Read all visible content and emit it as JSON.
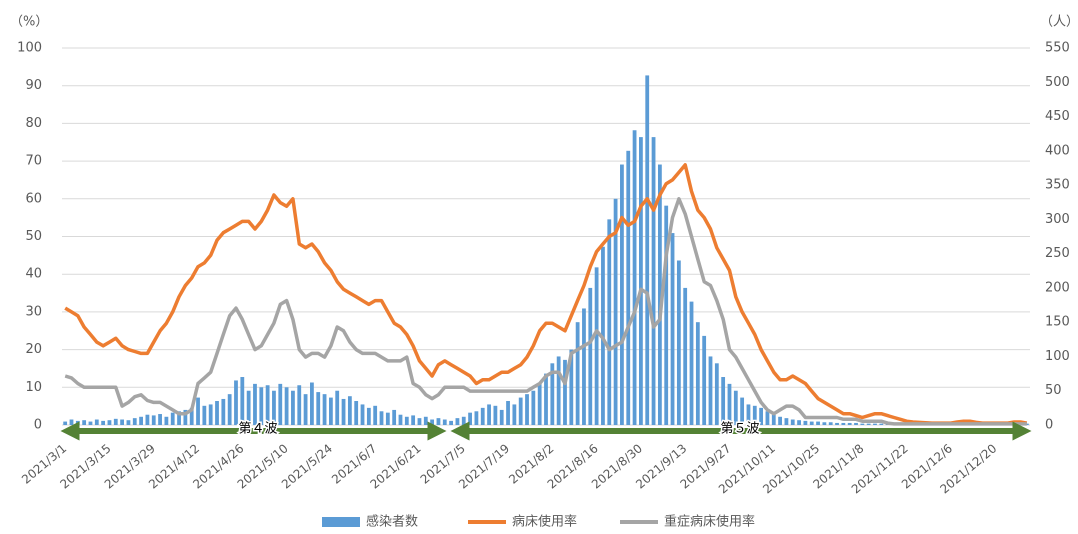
{
  "chart_data": {
    "type": "combo",
    "y_label": "（%）",
    "y2_label": "（人）",
    "annotations": [
      "第４波",
      "第５波"
    ],
    "categories": [
      "2021/3/1",
      null,
      null,
      null,
      null,
      null,
      null,
      "2021/3/15",
      null,
      null,
      null,
      null,
      null,
      null,
      "2021/3/29",
      null,
      null,
      null,
      null,
      null,
      null,
      "2021/4/12",
      null,
      null,
      null,
      null,
      null,
      null,
      "2021/4/26",
      null,
      null,
      null,
      null,
      null,
      null,
      "2021/5/10",
      null,
      null,
      null,
      null,
      null,
      null,
      "2021/5/24",
      null,
      null,
      null,
      null,
      null,
      null,
      "2021/6/7",
      null,
      null,
      null,
      null,
      null,
      null,
      "2021/6/21",
      null,
      null,
      null,
      null,
      null,
      null,
      "2021/7/5",
      null,
      null,
      null,
      null,
      null,
      null,
      "2021/7/19",
      null,
      null,
      null,
      null,
      null,
      null,
      "2021/8/2",
      null,
      null,
      null,
      null,
      null,
      null,
      "2021/8/16",
      null,
      null,
      null,
      null,
      null,
      null,
      "2021/8/30",
      null,
      null,
      null,
      null,
      null,
      null,
      "2021/9/13",
      null,
      null,
      null,
      null,
      null,
      null,
      "2021/9/27",
      null,
      null,
      null,
      null,
      null,
      null,
      "2021/10/11",
      null,
      null,
      null,
      null,
      null,
      null,
      "2021/10/25",
      null,
      null,
      null,
      null,
      null,
      null,
      "2021/11/8",
      null,
      null,
      null,
      null,
      null,
      null,
      "2021/11/22",
      null,
      null,
      null,
      null,
      null,
      null,
      "2021/12/6",
      null,
      null,
      null,
      null,
      null,
      null,
      "2021/12/20",
      null,
      null,
      null,
      null,
      null
    ],
    "series": [
      {
        "name": "感染者数",
        "type": "bar",
        "axis": "y2",
        "color": "#5b9bd5",
        "values": [
          5,
          8,
          6,
          7,
          5,
          8,
          6,
          7,
          9,
          8,
          7,
          10,
          12,
          15,
          14,
          16,
          12,
          18,
          20,
          22,
          25,
          40,
          28,
          30,
          35,
          38,
          45,
          65,
          70,
          50,
          60,
          55,
          58,
          50,
          60,
          55,
          50,
          58,
          45,
          62,
          48,
          45,
          40,
          50,
          38,
          42,
          35,
          30,
          25,
          28,
          20,
          18,
          22,
          15,
          12,
          14,
          10,
          12,
          8,
          10,
          8,
          6,
          10,
          12,
          18,
          20,
          25,
          30,
          28,
          22,
          35,
          30,
          40,
          45,
          50,
          60,
          75,
          90,
          100,
          95,
          110,
          150,
          170,
          200,
          230,
          260,
          300,
          330,
          380,
          400,
          430,
          420,
          510,
          420,
          380,
          320,
          280,
          240,
          200,
          180,
          150,
          130,
          100,
          90,
          70,
          60,
          50,
          40,
          30,
          28,
          25,
          20,
          15,
          12,
          10,
          8,
          7,
          6,
          5,
          5,
          4,
          4,
          3,
          3,
          3,
          3,
          2,
          2,
          2,
          2,
          2,
          2,
          2,
          2,
          2,
          2,
          2,
          2,
          2,
          2,
          2,
          2,
          2,
          2,
          2,
          2,
          2,
          2,
          2,
          2,
          2,
          2,
          2
        ]
      },
      {
        "name": "病床使用率",
        "type": "line",
        "color": "#ed7d31",
        "values": [
          31,
          30,
          29,
          26,
          24,
          22,
          21,
          22,
          23,
          21,
          20,
          19.5,
          19,
          19,
          22,
          25,
          27,
          30,
          34,
          37,
          39,
          42,
          43,
          45,
          49,
          51,
          52,
          53,
          54,
          54,
          52,
          54,
          57,
          61,
          59,
          58,
          60,
          48,
          47,
          48,
          46,
          43,
          41,
          38,
          36,
          35,
          34,
          33,
          32,
          33,
          33,
          30,
          27,
          26,
          24,
          21,
          17,
          15,
          13,
          16,
          17,
          16,
          15,
          14,
          13,
          11,
          12,
          12,
          13,
          14,
          14,
          15,
          16,
          18,
          21,
          25,
          27,
          27,
          26,
          25,
          29,
          33,
          37,
          42,
          46,
          48,
          50,
          51,
          55,
          53,
          54,
          58,
          60,
          57,
          61,
          64,
          65,
          67,
          69,
          62,
          57,
          55,
          52,
          47,
          44,
          41,
          34,
          30,
          27,
          24,
          20,
          17,
          14,
          12,
          12,
          13,
          12,
          11,
          9,
          7,
          6,
          5,
          4,
          3,
          3,
          2.5,
          2,
          2.5,
          3,
          3,
          2.5,
          2,
          1.5,
          1,
          0.8,
          0.7,
          0.6,
          0.5,
          0.5,
          0.5,
          0.5,
          0.8,
          1,
          1,
          0.7,
          0.5,
          0.5,
          0.5,
          0.5,
          0.5,
          0.8,
          0.8,
          0.5
        ]
      },
      {
        "name": "重症病床使用率",
        "type": "line",
        "color": "#a5a5a5",
        "values": [
          13,
          12.5,
          11,
          10,
          10,
          10,
          10,
          10,
          10,
          5,
          6,
          7.5,
          8,
          6.5,
          6,
          6,
          5,
          4,
          3,
          3,
          4,
          11,
          12.5,
          14,
          19,
          24,
          29,
          31,
          28,
          24,
          20,
          21,
          24,
          27,
          32,
          33,
          28,
          20,
          18,
          19,
          19,
          18,
          21,
          26,
          25,
          22,
          20,
          19,
          19,
          19,
          18,
          17,
          17,
          17,
          18,
          11,
          10,
          8,
          7,
          8,
          10,
          10,
          10,
          10,
          9,
          9,
          9,
          9,
          9,
          9,
          9,
          9,
          9,
          9,
          10,
          11,
          13,
          14,
          14,
          11,
          19,
          20,
          21,
          22,
          25,
          23,
          20,
          21,
          22,
          26,
          30,
          36,
          35,
          26,
          28,
          45,
          55,
          60,
          56,
          50,
          44,
          38,
          37,
          33,
          28,
          20,
          18,
          15,
          12,
          9,
          6,
          4,
          3,
          4,
          5,
          5,
          4,
          2,
          2,
          2,
          2,
          2,
          2,
          1.5,
          1.5,
          1.5,
          1,
          1,
          1,
          1,
          0.5,
          0.3,
          0.3,
          0.3,
          0.3,
          0.3,
          0.3,
          0.3,
          0.3,
          0.3,
          0.3,
          0.3,
          0.3,
          0.3,
          0.3,
          0.3,
          0.3,
          0.3,
          0.3,
          0.3,
          0.3,
          0.3,
          0.3
        ]
      }
    ],
    "ylim": [
      0,
      100
    ],
    "yticks": [
      0,
      10,
      20,
      30,
      40,
      50,
      60,
      70,
      80,
      90,
      100
    ],
    "y2lim": [
      0,
      550
    ],
    "y2ticks": [
      0,
      50,
      100,
      150,
      200,
      250,
      300,
      350,
      400,
      450,
      500,
      550
    ],
    "grid": true,
    "legend": "bottom"
  }
}
